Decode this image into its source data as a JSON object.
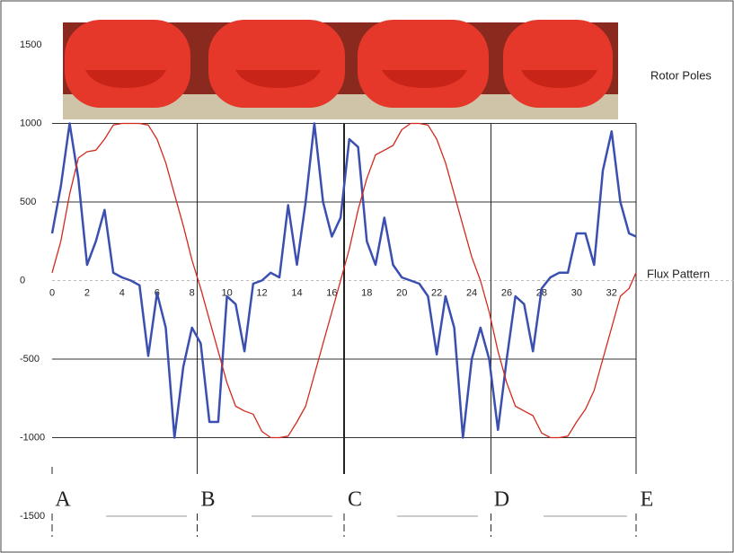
{
  "chart_data": {
    "type": "line",
    "x": [
      0,
      0.5,
      1,
      1.5,
      2,
      2.5,
      3,
      3.5,
      4,
      4.5,
      5,
      5.5,
      6,
      6.5,
      7,
      7.5,
      8,
      8.5,
      9,
      9.5,
      10,
      10.5,
      11,
      11.5,
      12,
      12.5,
      13,
      13.5,
      14,
      14.5,
      15,
      15.5,
      16,
      16.5,
      17,
      17.5,
      18,
      18.5,
      19,
      19.5,
      20,
      20.5,
      21,
      21.5,
      22,
      22.5,
      23,
      23.5,
      24,
      24.5,
      25,
      25.5,
      26,
      26.5,
      27,
      27.5,
      28,
      28.5,
      29,
      29.5,
      30,
      30.5,
      31,
      31.5,
      32,
      32.5,
      33,
      33.4
    ],
    "series": [
      {
        "color": "#3a4fb0",
        "values": [
          300,
          600,
          1000,
          650,
          100,
          250,
          450,
          50,
          20,
          0,
          -30,
          -480,
          -80,
          -300,
          -1000,
          -550,
          -300,
          -400,
          -900,
          -900,
          -100,
          -150,
          -450,
          -20,
          0,
          50,
          20,
          480,
          100,
          500,
          1000,
          500,
          280,
          400,
          900,
          850,
          250,
          100,
          400,
          100,
          20,
          0,
          -20,
          -100,
          -470,
          -100,
          -300,
          -1000,
          -500,
          -300,
          -500,
          -950,
          -500,
          -100,
          -150,
          -450,
          -50,
          20,
          50,
          50,
          300,
          300,
          100,
          700,
          950,
          500,
          300,
          280
        ]
      },
      {
        "color": "#d22a1e",
        "values": [
          50,
          250,
          550,
          780,
          820,
          830,
          900,
          990,
          1000,
          1000,
          1000,
          990,
          900,
          750,
          550,
          350,
          130,
          -50,
          -250,
          -450,
          -650,
          -800,
          -830,
          -850,
          -960,
          -1000,
          -1000,
          -990,
          -900,
          -800,
          -600,
          -400,
          -200,
          0,
          200,
          450,
          650,
          800,
          830,
          860,
          960,
          1000,
          1000,
          990,
          900,
          750,
          550,
          350,
          150,
          0,
          -200,
          -450,
          -650,
          -800,
          -830,
          -860,
          -970,
          -1000,
          -1000,
          -990,
          -900,
          -820,
          -700,
          -500,
          -300,
          -100,
          -50,
          50
        ]
      }
    ],
    "xlim": [
      0,
      33.4
    ],
    "ylim": [
      -1500,
      1500
    ],
    "xticks": [
      0,
      2,
      4,
      6,
      8,
      10,
      12,
      14,
      16,
      18,
      20,
      22,
      24,
      26,
      28,
      30,
      32
    ],
    "yticks": [
      -1500,
      -1000,
      -500,
      0,
      500,
      1000,
      1500
    ],
    "sections": [
      {
        "value": 0,
        "label": "A"
      },
      {
        "value": 8.3,
        "label": "B"
      },
      {
        "value": 16.7,
        "label": "C"
      },
      {
        "value": 25.1,
        "label": "D"
      },
      {
        "value": 33.4,
        "label": "E"
      }
    ],
    "annotations": [
      "Rotor Poles",
      "Flux Pattern"
    ]
  }
}
